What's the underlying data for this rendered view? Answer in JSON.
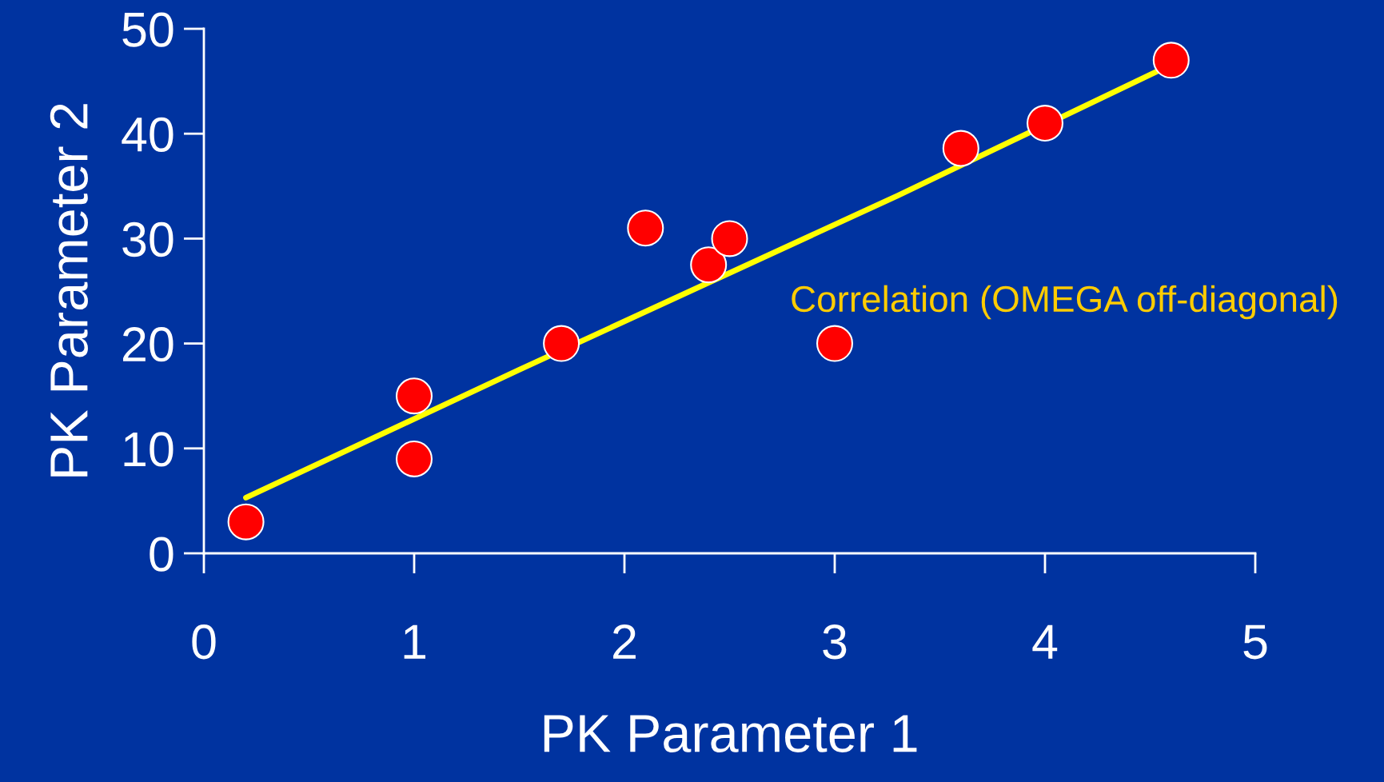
{
  "chart_data": {
    "type": "scatter",
    "xlabel": "PK Parameter 1",
    "ylabel": "PK Parameter 2",
    "xlim": [
      0,
      5
    ],
    "ylim": [
      0,
      50
    ],
    "xticks": [
      0,
      1,
      2,
      3,
      4,
      5
    ],
    "yticks": [
      0,
      10,
      20,
      30,
      40,
      50
    ],
    "grid": false,
    "legend": false,
    "series": [
      {
        "marker": "circle",
        "color": "#ff0000",
        "x": [
          0.2,
          1,
          1,
          1.7,
          2.1,
          2.4,
          2.5,
          3,
          3.6,
          4,
          4.6
        ],
        "values": [
          3,
          15,
          9,
          20,
          31,
          27.5,
          30,
          20,
          38.6,
          41,
          47
        ]
      },
      {
        "type": "line",
        "marker": "none",
        "color": "#ffff00",
        "x": [
          0.2,
          1.5,
          3.3,
          4.55
        ],
        "values": [
          5.3,
          17.5,
          34.1,
          46.1
        ]
      }
    ],
    "annotations": [
      "Correlation (OMEGA off-diagonal)"
    ]
  }
}
